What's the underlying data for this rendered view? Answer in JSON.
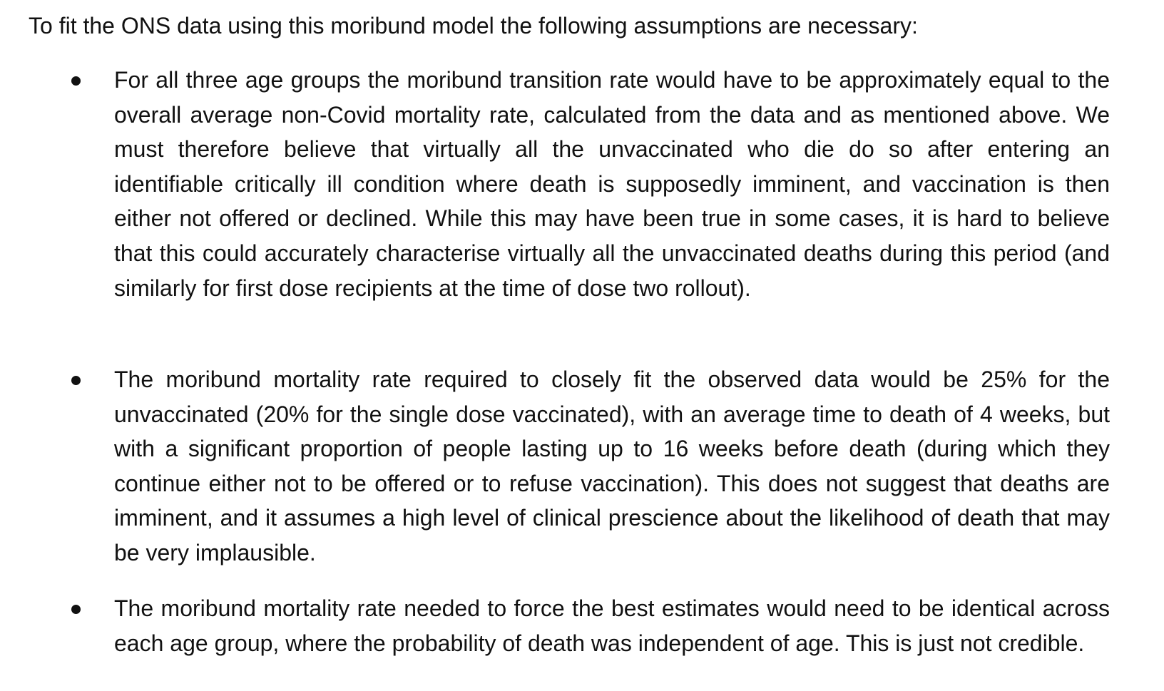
{
  "intro": "To fit the ONS data using this moribund model the following assumptions are necessary:",
  "bullets": [
    {
      "text": "For all three age groups the moribund transition rate would have to be approximately equal to the overall average non-Covid mortality rate, calculated from the data and as mentioned above. We must therefore believe that virtually all the unvaccinated who die do so after entering an identifiable critically ill condition where death is supposedly imminent, and vaccination is then either not offered or declined. While this may have been true in some cases, it is hard to believe that this could accurately characterise virtually all the unvaccinated deaths during this period (and similarly for first dose recipients at the time of dose two rollout)."
    },
    {
      "text": "The moribund mortality rate required to closely fit the observed data would be 25% for the unvaccinated (20% for the single dose vaccinated), with an average time to death of 4 weeks, but with a significant proportion of people lasting up to 16 weeks before death (during which they continue either not to be offered or to refuse vaccination). This does not suggest that deaths are imminent, and it assumes a high level of clinical prescience about the likelihood of death that may be very implausible."
    },
    {
      "text": "The moribund mortality rate needed to force the best estimates would need to be identical across each age group, where the probability of death was independent of age. This is just not credible."
    }
  ]
}
